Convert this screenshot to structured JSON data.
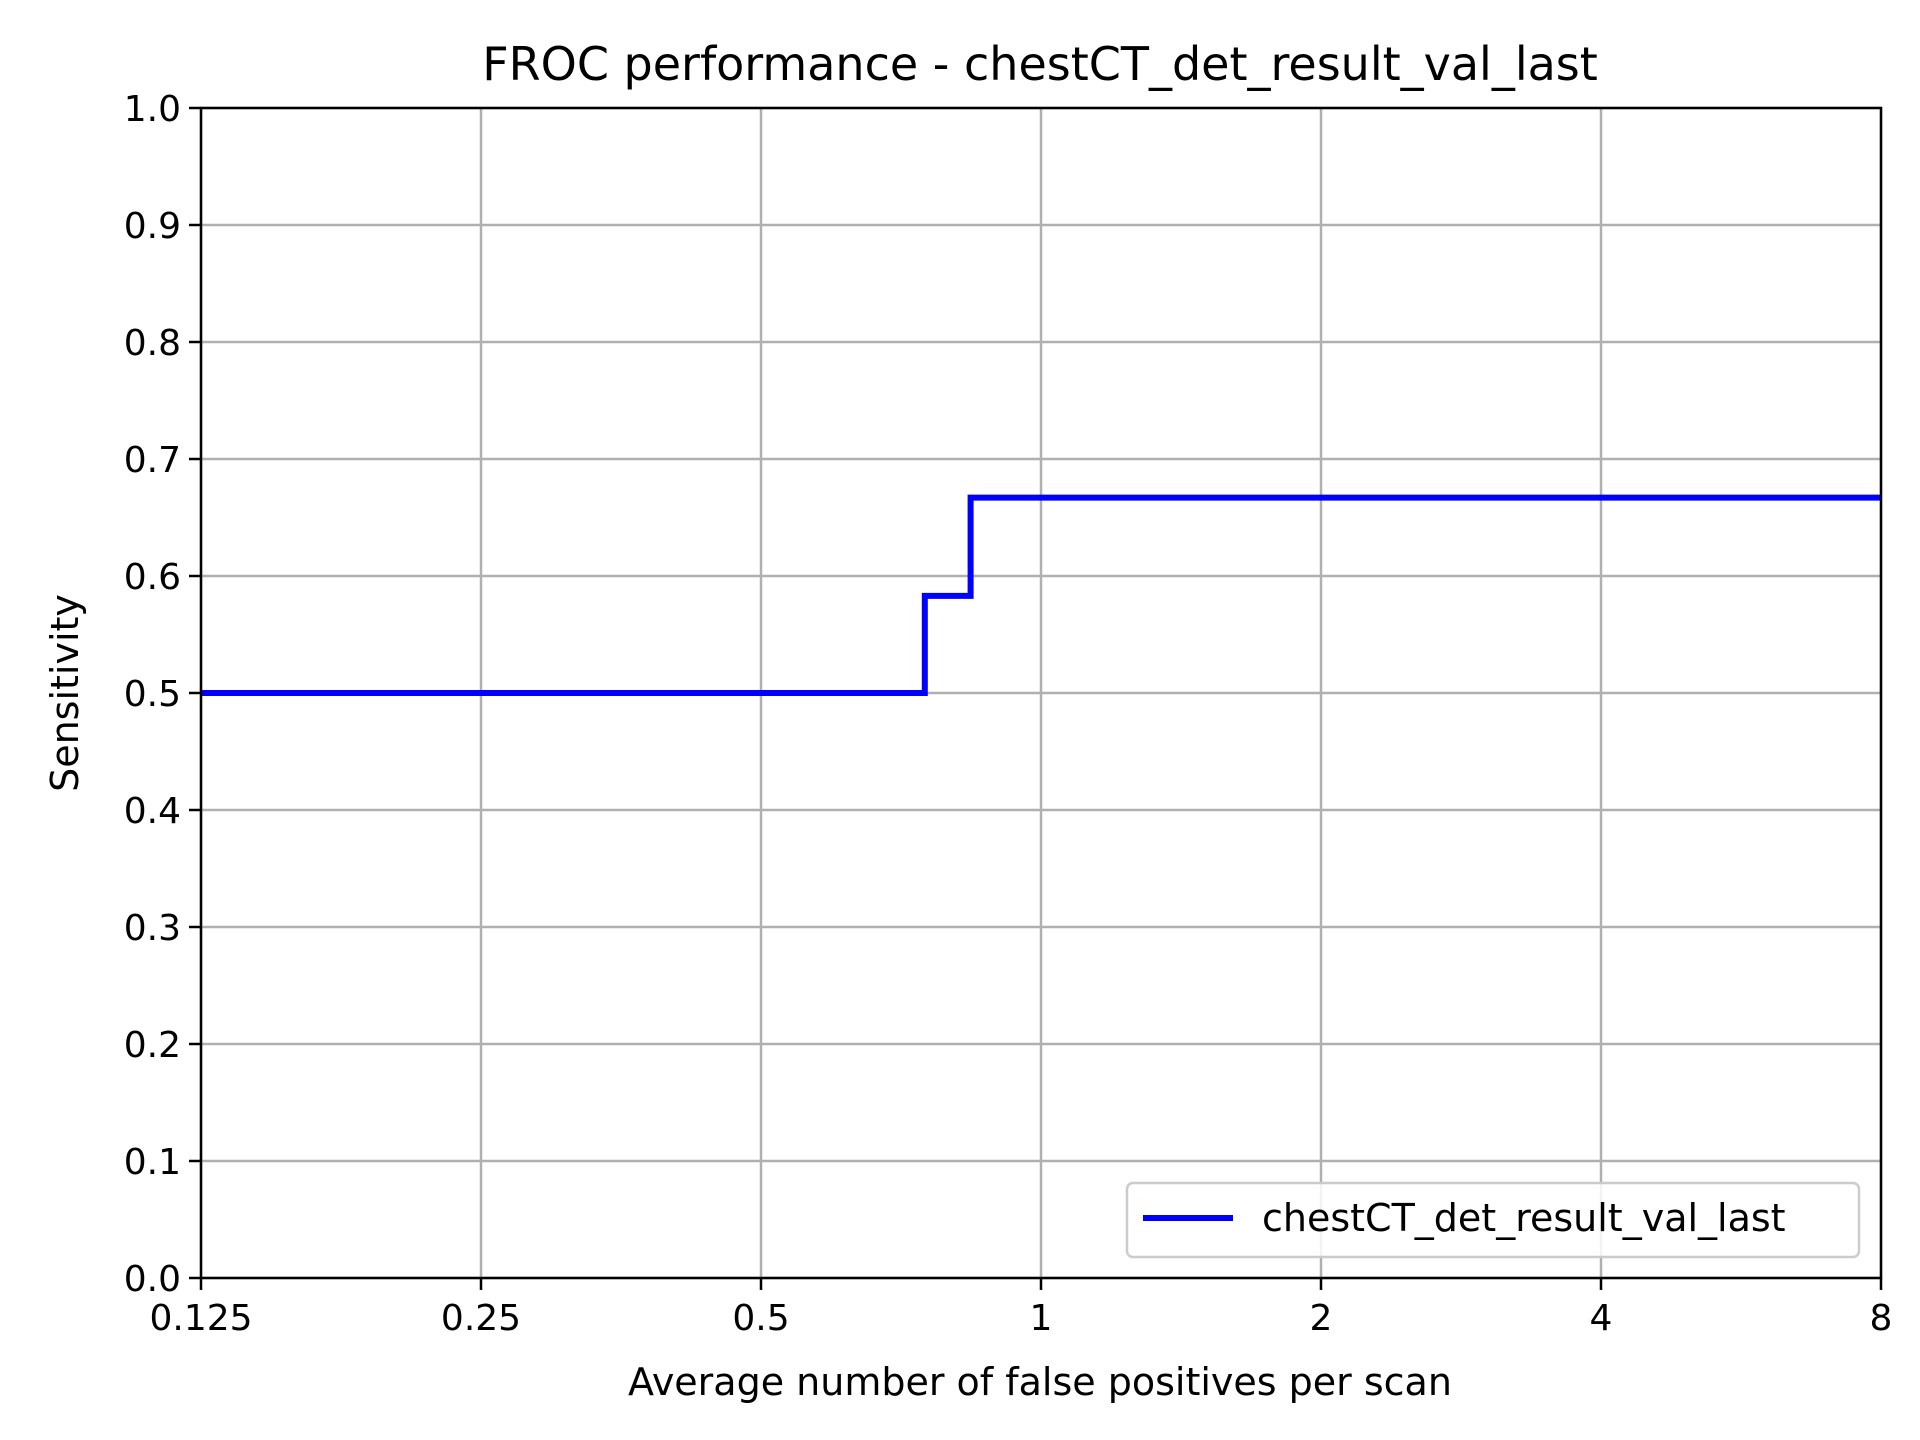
{
  "chart_data": {
    "type": "line",
    "title": "FROC performance - chestCT_det_result_val_last",
    "xlabel": "Average number of false positives per scan",
    "ylabel": "Sensitivity",
    "x_scale": "log2",
    "xlim": [
      0.125,
      8
    ],
    "ylim": [
      0.0,
      1.0
    ],
    "x_ticks": [
      {
        "value": 0.125,
        "label": "0.125"
      },
      {
        "value": 0.25,
        "label": "0.25"
      },
      {
        "value": 0.5,
        "label": "0.5"
      },
      {
        "value": 1,
        "label": "1"
      },
      {
        "value": 2,
        "label": "2"
      },
      {
        "value": 4,
        "label": "4"
      },
      {
        "value": 8,
        "label": "8"
      }
    ],
    "y_ticks": [
      {
        "value": 0.0,
        "label": "0.0"
      },
      {
        "value": 0.1,
        "label": "0.1"
      },
      {
        "value": 0.2,
        "label": "0.2"
      },
      {
        "value": 0.3,
        "label": "0.3"
      },
      {
        "value": 0.4,
        "label": "0.4"
      },
      {
        "value": 0.5,
        "label": "0.5"
      },
      {
        "value": 0.6,
        "label": "0.6"
      },
      {
        "value": 0.7,
        "label": "0.7"
      },
      {
        "value": 0.8,
        "label": "0.8"
      },
      {
        "value": 0.9,
        "label": "0.9"
      },
      {
        "value": 1.0,
        "label": "1.0"
      }
    ],
    "grid": true,
    "legend_position": "lower-right",
    "series": [
      {
        "name": "chestCT_det_result_val_last",
        "color": "#0000ff",
        "step": true,
        "x": [
          0.125,
          0.75,
          0.75,
          0.84,
          0.84,
          8
        ],
        "y": [
          0.5,
          0.5,
          0.583,
          0.583,
          0.667,
          0.667
        ]
      }
    ]
  }
}
